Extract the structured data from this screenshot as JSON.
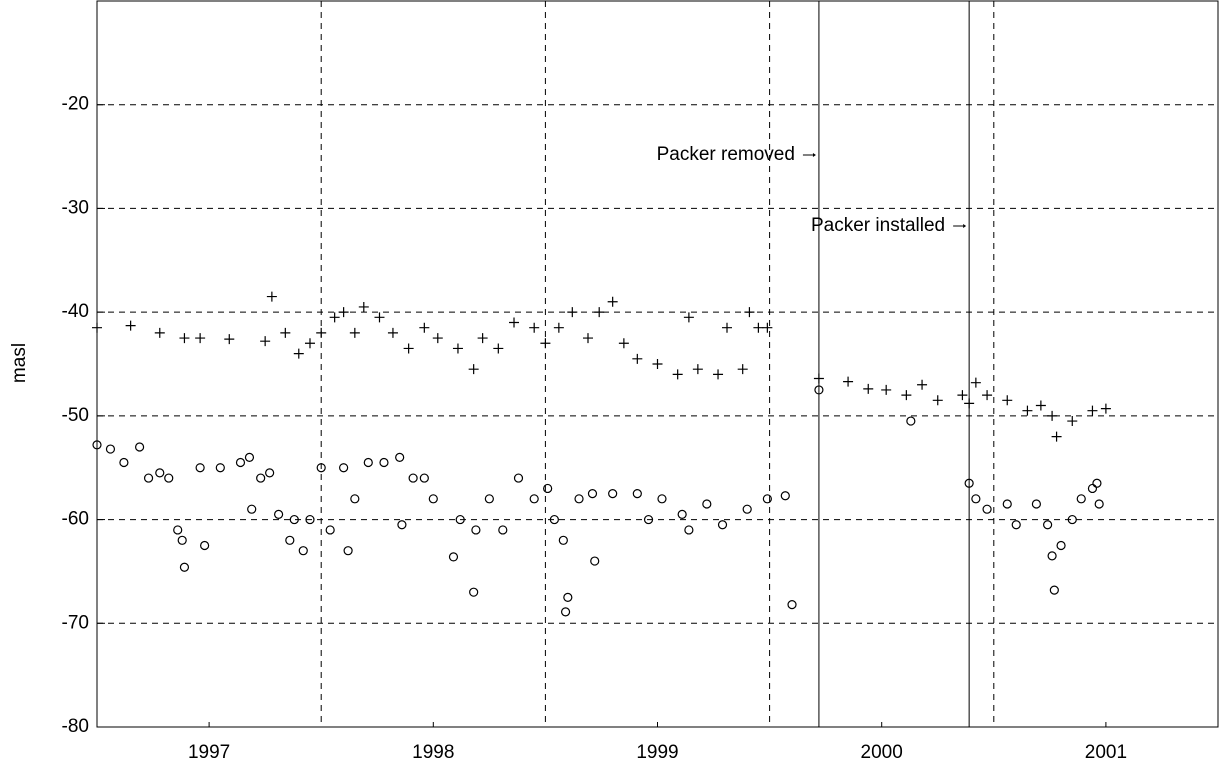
{
  "chart_data": {
    "type": "scatter",
    "ylabel": "masl",
    "xlim": [
      1997,
      2002
    ],
    "ylim": [
      -80,
      -10
    ],
    "yticks": [
      -80,
      -70,
      -60,
      -50,
      -40,
      -30,
      -20
    ],
    "xticks": [
      {
        "value": 1997.5,
        "label": "1997"
      },
      {
        "value": 1998.5,
        "label": "1998"
      },
      {
        "value": 1999.5,
        "label": "1999"
      },
      {
        "value": 2000.5,
        "label": "2000"
      },
      {
        "value": 2001.5,
        "label": "2001"
      }
    ],
    "xgrid": [
      1998,
      1999,
      2000,
      2001
    ],
    "grid": true,
    "annotations": [
      {
        "text": "Packer removed",
        "x": 2000.22
      },
      {
        "text": "Packer installed",
        "x": 2000.89
      }
    ],
    "series": [
      {
        "marker": "plus",
        "color": "#000000",
        "x": [
          1997.0,
          1997.15,
          1997.28,
          1997.39,
          1997.46,
          1997.59,
          1997.75,
          1997.78,
          1997.84,
          1997.9,
          1997.95,
          1998.0,
          1998.06,
          1998.1,
          1998.15,
          1998.19,
          1998.26,
          1998.32,
          1998.39,
          1998.46,
          1998.52,
          1998.61,
          1998.68,
          1998.72,
          1998.79,
          1998.86,
          1998.95,
          1999.0,
          1999.06,
          1999.12,
          1999.19,
          1999.24,
          1999.3,
          1999.35,
          1999.41,
          1999.5,
          1999.59,
          1999.64,
          1999.68,
          1999.77,
          1999.81,
          1999.88,
          1999.91,
          1999.95,
          1999.99,
          2000.22,
          2000.35,
          2000.44,
          2000.52,
          2000.61,
          2000.68,
          2000.75,
          2000.86,
          2000.89,
          2000.92,
          2000.97,
          2001.06,
          2001.15,
          2001.21,
          2001.26,
          2001.28,
          2001.35,
          2001.44,
          2001.5
        ],
        "y": [
          -41.5,
          -41.3,
          -42,
          -42.5,
          -42.5,
          -42.6,
          -42.8,
          -38.5,
          -42,
          -44,
          -43,
          -42,
          -40.5,
          -40,
          -42,
          -39.5,
          -40.5,
          -42,
          -43.5,
          -41.5,
          -42.5,
          -43.5,
          -45.5,
          -42.5,
          -43.5,
          -41,
          -41.5,
          -43,
          -41.5,
          -40,
          -42.5,
          -40,
          -39,
          -43,
          -44.5,
          -45,
          -46,
          -40.5,
          -45.5,
          -46,
          -41.5,
          -45.5,
          -40,
          -41.5,
          -41.5,
          -46.4,
          -46.7,
          -47.4,
          -47.5,
          -48,
          -47,
          -48.5,
          -48,
          -48.8,
          -46.8,
          -48,
          -48.5,
          -49.5,
          -49,
          -50,
          -52,
          -50.5,
          -49.5,
          -49.3
        ]
      },
      {
        "marker": "circle",
        "color": "#000000",
        "x": [
          1997.0,
          1997.06,
          1997.12,
          1997.19,
          1997.23,
          1997.28,
          1997.32,
          1997.36,
          1997.38,
          1997.39,
          1997.46,
          1997.48,
          1997.55,
          1997.64,
          1997.68,
          1997.69,
          1997.73,
          1997.77,
          1997.81,
          1997.86,
          1997.88,
          1997.92,
          1997.95,
          1998.0,
          1998.04,
          1998.1,
          1998.12,
          1998.15,
          1998.21,
          1998.28,
          1998.35,
          1998.36,
          1998.41,
          1998.46,
          1998.5,
          1998.59,
          1998.62,
          1998.68,
          1998.69,
          1998.75,
          1998.81,
          1998.88,
          1998.95,
          1999.01,
          1999.04,
          1999.08,
          1999.09,
          1999.1,
          1999.15,
          1999.21,
          1999.22,
          1999.3,
          1999.41,
          1999.46,
          1999.52,
          1999.61,
          1999.64,
          1999.72,
          1999.79,
          1999.9,
          1999.99,
          2000.07,
          2000.1,
          2000.22,
          2000.63,
          2000.89,
          2000.92,
          2000.97,
          2001.06,
          2001.1,
          2001.19,
          2001.24,
          2001.26,
          2001.27,
          2001.3,
          2001.35,
          2001.39,
          2001.44,
          2001.46,
          2001.47
        ],
        "y": [
          -52.8,
          -53.2,
          -54.5,
          -53,
          -56,
          -55.5,
          -56,
          -61,
          -62,
          -64.6,
          -55,
          -62.5,
          -55,
          -54.5,
          -54,
          -59,
          -56,
          -55.5,
          -59.5,
          -62,
          -60,
          -63,
          -60,
          -55,
          -61,
          -55,
          -63,
          -58,
          -54.5,
          -54.5,
          -54,
          -60.5,
          -56,
          -56,
          -58,
          -63.6,
          -60,
          -67,
          -61,
          -58,
          -61,
          -56,
          -58,
          -57,
          -60,
          -62,
          -68.9,
          -67.5,
          -58,
          -57.5,
          -64,
          -57.5,
          -57.5,
          -60,
          -58,
          -59.5,
          -61,
          -58.5,
          -60.5,
          -59,
          -58,
          -57.7,
          -68.2,
          -47.5,
          -50.5,
          -56.5,
          -58,
          -59,
          -58.5,
          -60.5,
          -58.5,
          -60.5,
          -63.5,
          -66.8,
          -62.5,
          -60,
          -58,
          -57,
          -56.5,
          -58.5
        ]
      }
    ]
  }
}
